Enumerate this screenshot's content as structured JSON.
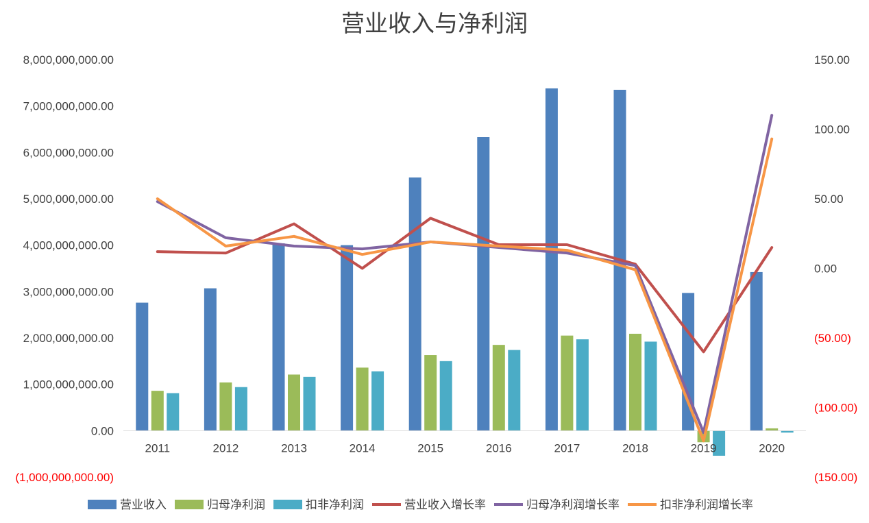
{
  "chart_data": {
    "type": "bar",
    "title": "营业收入与净利润",
    "categories": [
      "2011",
      "2012",
      "2013",
      "2014",
      "2015",
      "2016",
      "2017",
      "2018",
      "2019",
      "2020"
    ],
    "y_left": {
      "min": -1000000000,
      "max": 8000000000,
      "step": 1000000000,
      "tick_labels": [
        "(1,000,000,000.00)",
        "0.00",
        "1,000,000,000.00",
        "2,000,000,000.00",
        "3,000,000,000.00",
        "4,000,000,000.00",
        "5,000,000,000.00",
        "6,000,000,000.00",
        "7,000,000,000.00",
        "8,000,000,000.00"
      ]
    },
    "y_right": {
      "min": -150,
      "max": 150,
      "step": 50,
      "tick_labels": [
        "(150.00)",
        "(100.00)",
        "(50.00)",
        "0.00",
        "50.00",
        "100.00",
        "150.00"
      ]
    },
    "series": [
      {
        "name": "营业收入",
        "kind": "bar",
        "axis": "left",
        "color": "#4e81bd",
        "values": [
          2760000000,
          3070000000,
          4040000000,
          4000000000,
          5460000000,
          6330000000,
          7380000000,
          7350000000,
          2970000000,
          3420000000
        ]
      },
      {
        "name": "归母净利润",
        "kind": "bar",
        "axis": "left",
        "color": "#9bbb59",
        "values": [
          860000000,
          1040000000,
          1210000000,
          1360000000,
          1630000000,
          1850000000,
          2050000000,
          2090000000,
          -250000000,
          50000000
        ]
      },
      {
        "name": "扣非净利润",
        "kind": "bar",
        "axis": "left",
        "color": "#4bacc6",
        "values": [
          810000000,
          940000000,
          1160000000,
          1280000000,
          1500000000,
          1740000000,
          1970000000,
          1920000000,
          -540000000,
          -40000000
        ]
      },
      {
        "name": "营业收入增长率",
        "kind": "line",
        "axis": "right",
        "color": "#c0504d",
        "values": [
          12,
          11,
          32,
          0,
          36,
          17,
          17,
          3,
          -60,
          15
        ]
      },
      {
        "name": "归母净利润增长率",
        "kind": "line",
        "axis": "right",
        "color": "#8064a2",
        "values": [
          48,
          22,
          16,
          14,
          19,
          15,
          11,
          2,
          -118,
          110
        ]
      },
      {
        "name": "扣非净利润增长率",
        "kind": "line",
        "axis": "right",
        "color": "#f79646",
        "values": [
          50,
          16,
          23,
          10,
          19,
          16,
          13,
          -1,
          -124,
          93
        ]
      }
    ],
    "legend_position": "bottom",
    "grid": false
  }
}
